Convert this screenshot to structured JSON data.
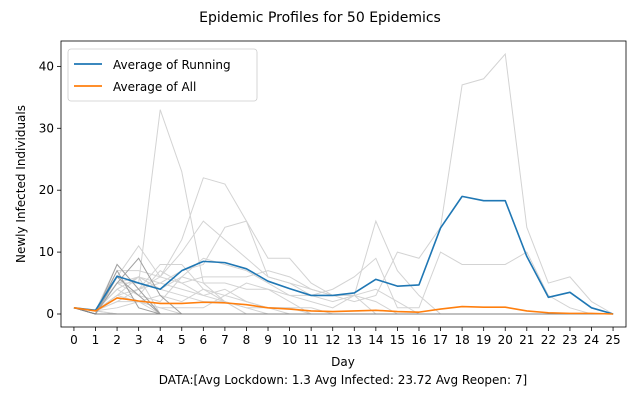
{
  "chart_data": {
    "type": "line",
    "title": "Epidemic Profiles for 50 Epidemics",
    "xlabel": "Day",
    "ylabel": "Newly Infected Individuals",
    "footer": "DATA:[Avg Lockdown: 1.3 Avg Infected: 23.72 Avg Reopen: 7]",
    "x": [
      0,
      1,
      2,
      3,
      4,
      5,
      6,
      7,
      8,
      9,
      10,
      11,
      12,
      13,
      14,
      15,
      16,
      17,
      18,
      19,
      20,
      21,
      22,
      23,
      24,
      25
    ],
    "xlim": [
      -0.6,
      25.6
    ],
    "ylim": [
      -2.1,
      44.1
    ],
    "xticks": [
      0,
      1,
      2,
      3,
      4,
      5,
      6,
      7,
      8,
      9,
      10,
      11,
      12,
      13,
      14,
      15,
      16,
      17,
      18,
      19,
      20,
      21,
      22,
      23,
      24,
      25
    ],
    "yticks": [
      0,
      10,
      20,
      30,
      40
    ],
    "grid": false,
    "legend_position": "top-left",
    "series": [
      {
        "name": "Average of Running",
        "color": "#1f77b4",
        "values": [
          1,
          0.6,
          6.1,
          5,
          4,
          7,
          8.5,
          8.3,
          7.3,
          5.3,
          4.1,
          3,
          3,
          3.4,
          5.6,
          4.5,
          4.7,
          13.9,
          19,
          18.3,
          18.3,
          9.3,
          2.7,
          3.5,
          1,
          0
        ]
      },
      {
        "name": "Average of All",
        "color": "#ff7f0e",
        "values": [
          1,
          0.5,
          2.6,
          2.1,
          1.7,
          1.7,
          1.9,
          1.8,
          1.5,
          1,
          0.8,
          0.5,
          0.4,
          0.5,
          0.6,
          0.4,
          0.3,
          0.8,
          1.2,
          1.1,
          1.1,
          0.5,
          0.2,
          0.1,
          0.1,
          0
        ]
      }
    ],
    "background_series": [
      {
        "color": "#d3d3d3",
        "values": [
          1,
          0.5,
          5,
          5,
          33,
          23,
          5,
          2,
          0,
          0,
          0,
          0,
          0,
          0,
          0,
          0,
          0,
          0,
          0,
          0,
          0,
          0,
          0,
          0,
          0,
          0
        ]
      },
      {
        "color": "#d3d3d3",
        "values": [
          1,
          0.5,
          6,
          11,
          6,
          12,
          22,
          21,
          15,
          6,
          5,
          4,
          3,
          3,
          0,
          0,
          0,
          0,
          0,
          0,
          0,
          0,
          0,
          0,
          0,
          0
        ]
      },
      {
        "color": "#d3d3d3",
        "values": [
          1,
          0.5,
          7,
          7,
          6,
          10,
          15,
          12,
          9,
          6,
          5,
          3,
          2,
          3,
          15,
          7,
          3,
          0,
          0,
          0,
          0,
          0,
          0,
          0,
          0,
          0
        ]
      },
      {
        "color": "#d3d3d3",
        "values": [
          1,
          0.5,
          5,
          6,
          5,
          7,
          8,
          14,
          15,
          9,
          9,
          5,
          3,
          2,
          3,
          10,
          9,
          14,
          37,
          38,
          42,
          14,
          5,
          6,
          2,
          0
        ]
      },
      {
        "color": "#d3d3d3",
        "values": [
          1,
          0.5,
          4,
          6,
          4,
          6,
          9,
          8,
          7,
          5,
          3,
          3,
          4,
          6,
          9,
          1,
          1,
          10,
          8,
          8,
          8,
          10,
          3,
          1,
          0,
          0
        ]
      },
      {
        "color": "#d3d3d3",
        "values": [
          1,
          0.5,
          8,
          4,
          6,
          5,
          6,
          6,
          6,
          7,
          6,
          4,
          3,
          3,
          4,
          2,
          0,
          0,
          0,
          0,
          0,
          0,
          0,
          0,
          0,
          0
        ]
      },
      {
        "color": "#d3d3d3",
        "values": [
          1,
          0.5,
          3,
          4,
          8,
          8,
          4,
          3,
          5,
          4,
          3,
          2,
          1,
          3,
          2,
          0,
          0,
          0,
          0,
          0,
          0,
          0,
          0,
          0,
          0,
          0
        ]
      },
      {
        "color": "#d3d3d3",
        "values": [
          1,
          0.5,
          6,
          3,
          2,
          6,
          5,
          5,
          4,
          4,
          2,
          0,
          0,
          0,
          0,
          0,
          0,
          0,
          0,
          0,
          0,
          0,
          0,
          0,
          0,
          0
        ]
      },
      {
        "color": "#d3d3d3",
        "values": [
          1,
          0.5,
          2,
          2,
          3,
          2,
          4,
          2,
          0,
          0,
          0,
          0,
          0,
          0,
          0,
          0,
          0,
          0,
          0,
          0,
          0,
          0,
          0,
          0,
          0,
          0
        ]
      },
      {
        "color": "#d3d3d3",
        "values": [
          1,
          0.5,
          4,
          6,
          0,
          0,
          0,
          0,
          0,
          0,
          0,
          0,
          0,
          0,
          0,
          0,
          0,
          0,
          0,
          0,
          0,
          0,
          0,
          0,
          0,
          0
        ]
      },
      {
        "color": "#d3d3d3",
        "values": [
          1,
          0.5,
          3,
          2,
          1,
          1,
          1,
          3,
          2,
          1,
          1,
          0,
          0,
          0,
          0,
          0,
          0,
          0,
          0,
          0,
          0,
          0,
          0,
          0,
          0,
          0
        ]
      },
      {
        "color": "#d3d3d3",
        "values": [
          1,
          0.5,
          0,
          0,
          0,
          0,
          0,
          0,
          0,
          0,
          0,
          0,
          0,
          0,
          0,
          0,
          0,
          0,
          0,
          0,
          0,
          0,
          0,
          0,
          0,
          0
        ]
      },
      {
        "color": "#d3d3d3",
        "values": [
          1,
          0.5,
          0,
          0,
          0,
          0,
          0,
          0,
          0,
          0,
          0,
          0,
          0,
          0,
          0,
          0,
          0,
          0,
          0,
          0,
          0,
          0,
          0,
          0,
          0,
          0
        ]
      },
      {
        "color": "#d3d3d3",
        "values": [
          1,
          0.5,
          2,
          4,
          5,
          4,
          3,
          4,
          2,
          1,
          1,
          1,
          0,
          0,
          0,
          0,
          0,
          0,
          0,
          0,
          0,
          0,
          0,
          0,
          0,
          0
        ]
      },
      {
        "color": "#d3d3d3",
        "values": [
          1,
          0.5,
          5,
          3,
          7,
          5,
          3,
          2,
          1,
          0,
          0,
          0,
          0,
          0,
          0,
          0,
          0,
          0,
          0,
          0,
          0,
          0,
          0,
          0,
          0,
          0
        ]
      },
      {
        "color": "#d3d3d3",
        "values": [
          1,
          0.5,
          1,
          2,
          1,
          0,
          0,
          0,
          0,
          0,
          0,
          0,
          0,
          0,
          0,
          0,
          0,
          0,
          0,
          0,
          0,
          0,
          0,
          0,
          0,
          0
        ]
      },
      {
        "color": "#d3d3d3",
        "values": [
          1,
          0.5,
          4,
          2,
          0,
          0,
          0,
          0,
          0,
          0,
          0,
          0,
          0,
          0,
          0,
          0,
          0,
          0,
          0,
          0,
          0,
          0,
          0,
          0,
          0,
          0
        ]
      },
      {
        "color": "#d3d3d3",
        "values": [
          1,
          0.5,
          3,
          6,
          4,
          3,
          2,
          2,
          1,
          1,
          0,
          0,
          0,
          0,
          0,
          0,
          0,
          0,
          0,
          0,
          0,
          0,
          0,
          0,
          0,
          0
        ]
      },
      {
        "color": "#a0a0a0",
        "values": [
          1,
          0,
          8,
          4,
          0,
          0,
          0,
          0,
          0,
          0,
          0,
          0,
          0,
          0,
          0,
          0,
          0,
          0,
          0,
          0,
          0,
          0,
          0,
          0,
          0,
          0
        ]
      },
      {
        "color": "#a0a0a0",
        "values": [
          1,
          0,
          5,
          9,
          3,
          0,
          0,
          0,
          0,
          0,
          0,
          0,
          0,
          0,
          0,
          0,
          0,
          0,
          0,
          0,
          0,
          0,
          0,
          0,
          0,
          0
        ]
      },
      {
        "color": "#a0a0a0",
        "values": [
          1,
          0,
          7,
          1,
          0,
          0,
          0,
          0,
          0,
          0,
          0,
          0,
          0,
          0,
          0,
          0,
          0,
          0,
          0,
          0,
          0,
          0,
          0,
          0,
          0,
          0
        ]
      },
      {
        "color": "#a0a0a0",
        "values": [
          1,
          0,
          6,
          3,
          0,
          0,
          0,
          0,
          0,
          0,
          0,
          0,
          0,
          0,
          0,
          0,
          0,
          0,
          0,
          0,
          0,
          0,
          0,
          0,
          0,
          0
        ]
      },
      {
        "color": "#808080",
        "values": [
          1,
          0,
          0,
          0,
          0,
          0,
          0,
          0,
          0,
          0,
          0,
          0,
          0,
          0,
          0,
          0,
          0,
          0,
          0,
          0,
          0,
          0,
          0,
          0,
          0,
          0
        ]
      }
    ]
  }
}
